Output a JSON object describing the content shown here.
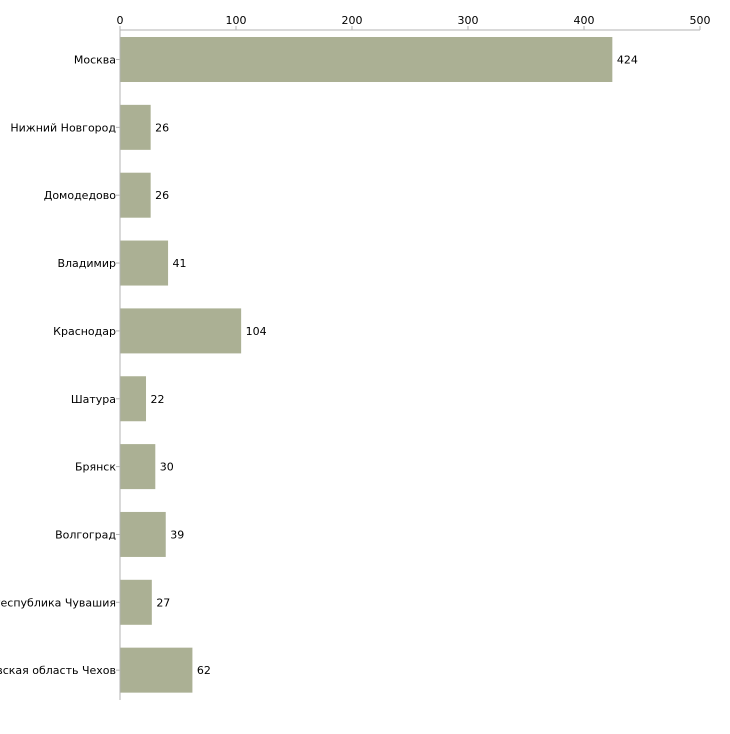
{
  "chart_data": {
    "type": "bar",
    "orientation": "horizontal",
    "title": "",
    "xlabel": "",
    "ylabel": "",
    "categories": [
      "Москва",
      "Нижний Новгород",
      "Домодедово",
      "Владимир",
      "Краснодар",
      "Шатура",
      "Брянск",
      "Волгоград",
      "Республика Чувашия",
      "Московская область Чехов"
    ],
    "values": [
      424,
      26,
      26,
      41,
      104,
      22,
      30,
      39,
      27,
      62
    ],
    "xlim": [
      0,
      500
    ],
    "xticks": [
      0,
      100,
      200,
      300,
      400,
      500
    ],
    "grid": false,
    "bar_color": "#abb094",
    "axis_color": "#b3b3b3"
  }
}
